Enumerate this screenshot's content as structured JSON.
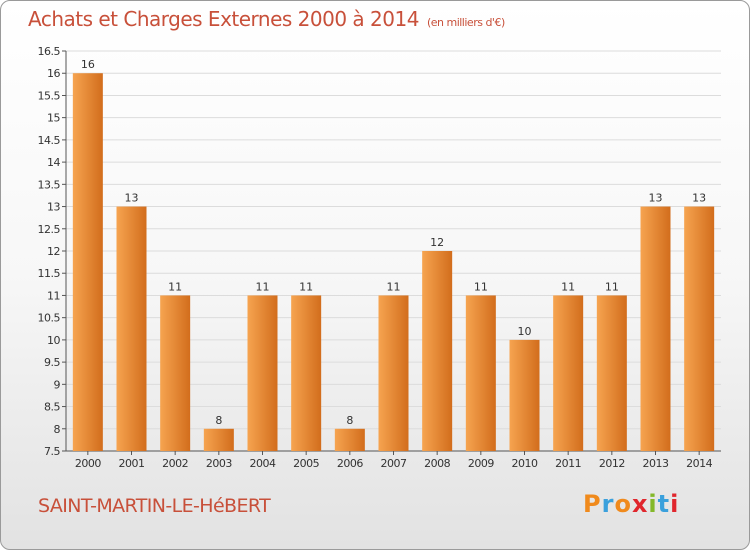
{
  "header": {
    "title": "Achats et Charges Externes 2000 à 2014",
    "unit": "(en milliers d'€)"
  },
  "footer": {
    "place": "SAINT-MARTIN-LE-HéBERT",
    "logo": "Proxiti"
  },
  "colors": {
    "accent": "#c8503a",
    "bar_light": "#f6a450",
    "bar_dark": "#d26d1c",
    "logo_letters": [
      "#f08a1c",
      "#3aa0dc",
      "#f08a1c",
      "#e0262d",
      "#84b82a",
      "#3aa0dc",
      "#e0262d"
    ]
  },
  "chart_data": {
    "type": "bar",
    "categories": [
      "2000",
      "2001",
      "2002",
      "2003",
      "2004",
      "2005",
      "2006",
      "2007",
      "2008",
      "2009",
      "2010",
      "2011",
      "2012",
      "2013",
      "2014"
    ],
    "values": [
      16,
      13,
      11,
      8,
      11,
      11,
      8,
      11,
      12,
      11,
      10,
      11,
      11,
      13,
      13
    ],
    "data_labels": [
      "16",
      "13",
      "11",
      "8",
      "11",
      "11",
      "8",
      "11",
      "12",
      "11",
      "10",
      "11",
      "11",
      "13",
      "13"
    ],
    "y_ticks": [
      "7.5",
      "8",
      "8.5",
      "9",
      "9.5",
      "10",
      "10.5",
      "11",
      "11.5",
      "12",
      "12.5",
      "13",
      "13.5",
      "14",
      "14.5",
      "15",
      "15.5",
      "16",
      "16.5"
    ],
    "ylim": [
      7.5,
      16.5
    ],
    "grid": true,
    "title": "Achats et Charges Externes 2000 à 2014",
    "xlabel": "",
    "ylabel": ""
  }
}
